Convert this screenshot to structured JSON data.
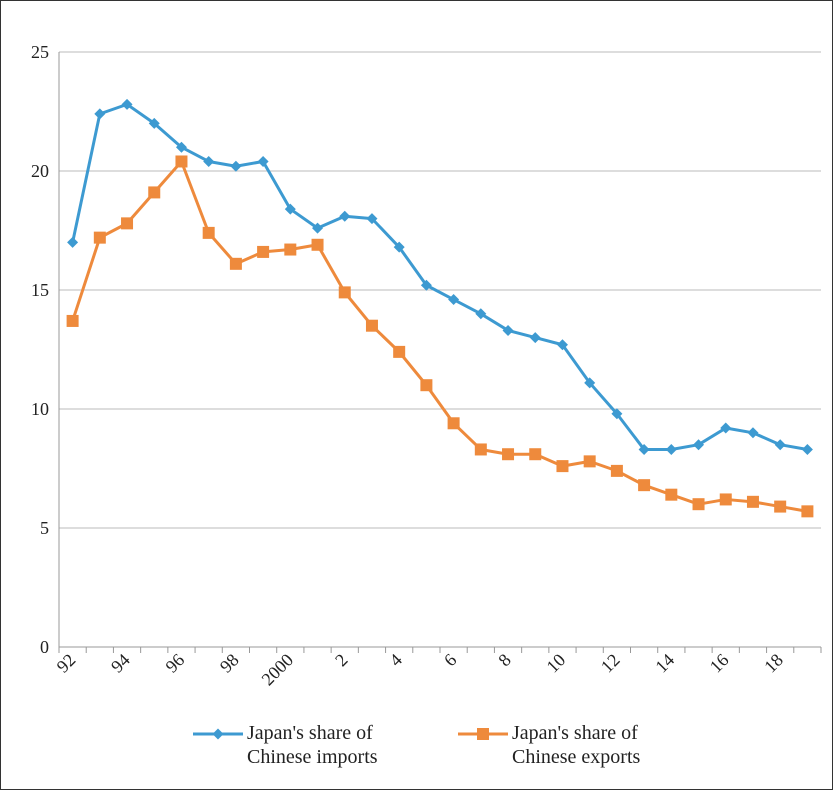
{
  "chart_data": {
    "type": "line",
    "categories": [
      "92",
      null,
      "94",
      null,
      "96",
      null,
      "98",
      null,
      "2000",
      null,
      "2",
      null,
      "4",
      null,
      "6",
      null,
      "8",
      null,
      "10",
      null,
      "12",
      null,
      "14",
      null,
      "16",
      null,
      "18",
      null
    ],
    "series": [
      {
        "name": "Japan's share of Chinese imports",
        "color": "#3d9ad1",
        "marker": "diamond",
        "values": [
          17.0,
          22.4,
          22.8,
          22.0,
          21.0,
          20.4,
          20.2,
          20.4,
          18.4,
          17.6,
          18.1,
          18.0,
          16.8,
          15.2,
          14.6,
          14.0,
          13.3,
          13.0,
          12.7,
          11.1,
          9.8,
          8.3,
          8.3,
          8.5,
          9.2,
          9.0,
          8.5,
          8.3
        ]
      },
      {
        "name": "Japan's share of Chinese exports",
        "color": "#ee8a3c",
        "marker": "square",
        "values": [
          13.7,
          17.2,
          17.8,
          19.1,
          20.4,
          17.4,
          16.1,
          16.6,
          16.7,
          16.9,
          14.9,
          13.5,
          12.4,
          11.0,
          9.4,
          8.3,
          8.1,
          8.1,
          7.6,
          7.8,
          7.4,
          6.8,
          6.4,
          6.0,
          6.2,
          6.1,
          5.9,
          5.7
        ]
      }
    ],
    "ylim": [
      0,
      25
    ],
    "yticks": [
      0,
      5,
      10,
      15,
      20,
      25
    ],
    "grid": true,
    "legend": "bottom"
  }
}
